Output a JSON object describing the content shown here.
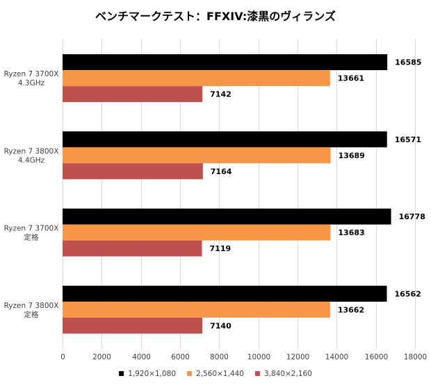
{
  "chart_data": {
    "type": "bar",
    "orientation": "horizontal",
    "title": "ベンチマークテスト：FFXIV:漆黒のヴィランズ",
    "xlabel": "",
    "ylabel": "",
    "xlim": [
      0,
      18000
    ],
    "x_ticks": [
      0,
      2000,
      4000,
      6000,
      8000,
      10000,
      12000,
      14000,
      16000,
      18000
    ],
    "grid": true,
    "legend_position": "bottom",
    "categories": [
      [
        "Ryzen 7 3700X",
        "4.3GHz"
      ],
      [
        "Ryzen 7 3800X",
        "4.4GHz"
      ],
      [
        "Ryzen 7 3700X",
        "定格"
      ],
      [
        "Ryzen 7 3800X",
        "定格"
      ]
    ],
    "series": [
      {
        "name": "1,920×1,080",
        "color": "#000000",
        "values": [
          16585,
          16571,
          16778,
          16562
        ]
      },
      {
        "name": "2,560×1,440",
        "color": "#F79646",
        "values": [
          13661,
          13689,
          13683,
          13662
        ]
      },
      {
        "name": "3,840×2,160",
        "color": "#C0504D",
        "values": [
          7142,
          7164,
          7119,
          7140
        ]
      }
    ]
  }
}
